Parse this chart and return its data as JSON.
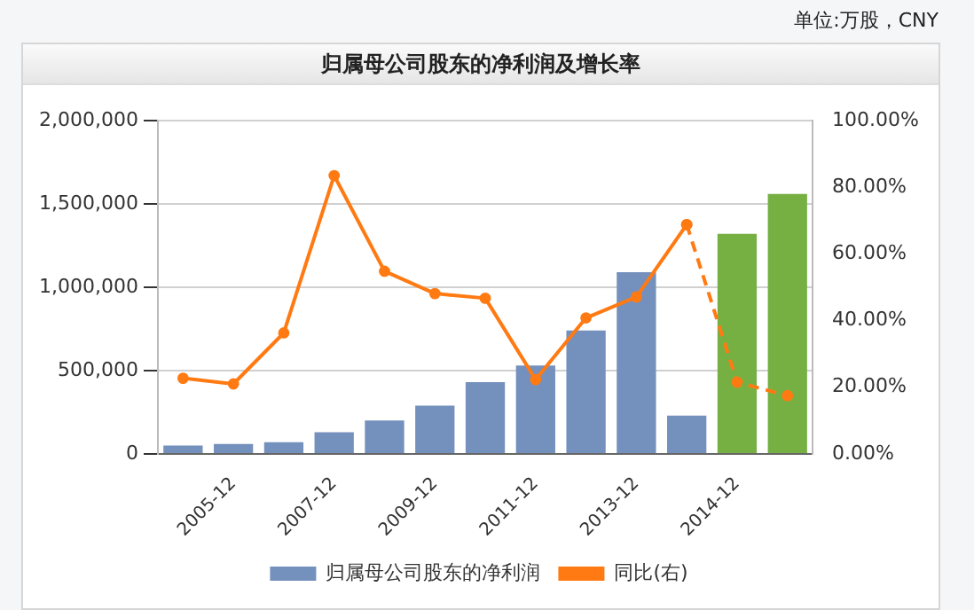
{
  "chart_data": {
    "type": "bar",
    "title": "归属母公司股东的净利润及增长率",
    "annotations": [
      "单位:万股，CNY"
    ],
    "categories": [
      null,
      "2005-12",
      null,
      "2007-12",
      null,
      "2009-12",
      null,
      "2011-12",
      null,
      "2013-12",
      null,
      "2014-12",
      null
    ],
    "series": [
      {
        "name": "归属母公司股东的净利润",
        "color": "#7490bd",
        "colors": [
          "#7490bd",
          "#7490bd",
          "#7490bd",
          "#7490bd",
          "#7490bd",
          "#7490bd",
          "#7490bd",
          "#7490bd",
          "#7490bd",
          "#7490bd",
          "#7490bd",
          "#76b043",
          "#76b043"
        ],
        "values": [
          50000,
          60000,
          70000,
          130000,
          200000,
          290000,
          430000,
          530000,
          740000,
          1090000,
          230000,
          1320000,
          1560000
        ]
      },
      {
        "name": "同比(右)",
        "type": "line",
        "axis": "y2",
        "color": "#ff7a12",
        "line_style": "solid",
        "values": [
          22.7,
          21.0,
          36.3,
          83.5,
          54.8,
          48.1,
          46.7,
          22.3,
          40.8,
          47.1,
          68.8,
          null,
          null
        ]
      },
      {
        "type": "line",
        "axis": "y2",
        "color": "#ff7a12",
        "line_style": "dashed",
        "values": [
          null,
          null,
          null,
          null,
          null,
          null,
          null,
          null,
          null,
          null,
          68.8,
          21.5,
          17.5
        ]
      }
    ],
    "ylim": [
      0,
      2000000
    ],
    "yticks": [
      {
        "value": 0,
        "label": "0"
      },
      {
        "value": 500000,
        "label": "500,000"
      },
      {
        "value": 1000000,
        "label": "1,000,000"
      },
      {
        "value": 1500000,
        "label": "1,500,000"
      },
      {
        "value": 2000000,
        "label": "2,000,000"
      }
    ],
    "y2lim": [
      0,
      100
    ],
    "y2ticks": [
      {
        "value": 0,
        "label": "0.00%"
      },
      {
        "value": 20,
        "label": "20.00%"
      },
      {
        "value": 40,
        "label": "40.00%"
      },
      {
        "value": 60,
        "label": "60.00%"
      },
      {
        "value": 80,
        "label": "80.00%"
      },
      {
        "value": 100,
        "label": "100.00%"
      }
    ],
    "grid": "y",
    "legend": "bottom",
    "marker": "circle"
  }
}
